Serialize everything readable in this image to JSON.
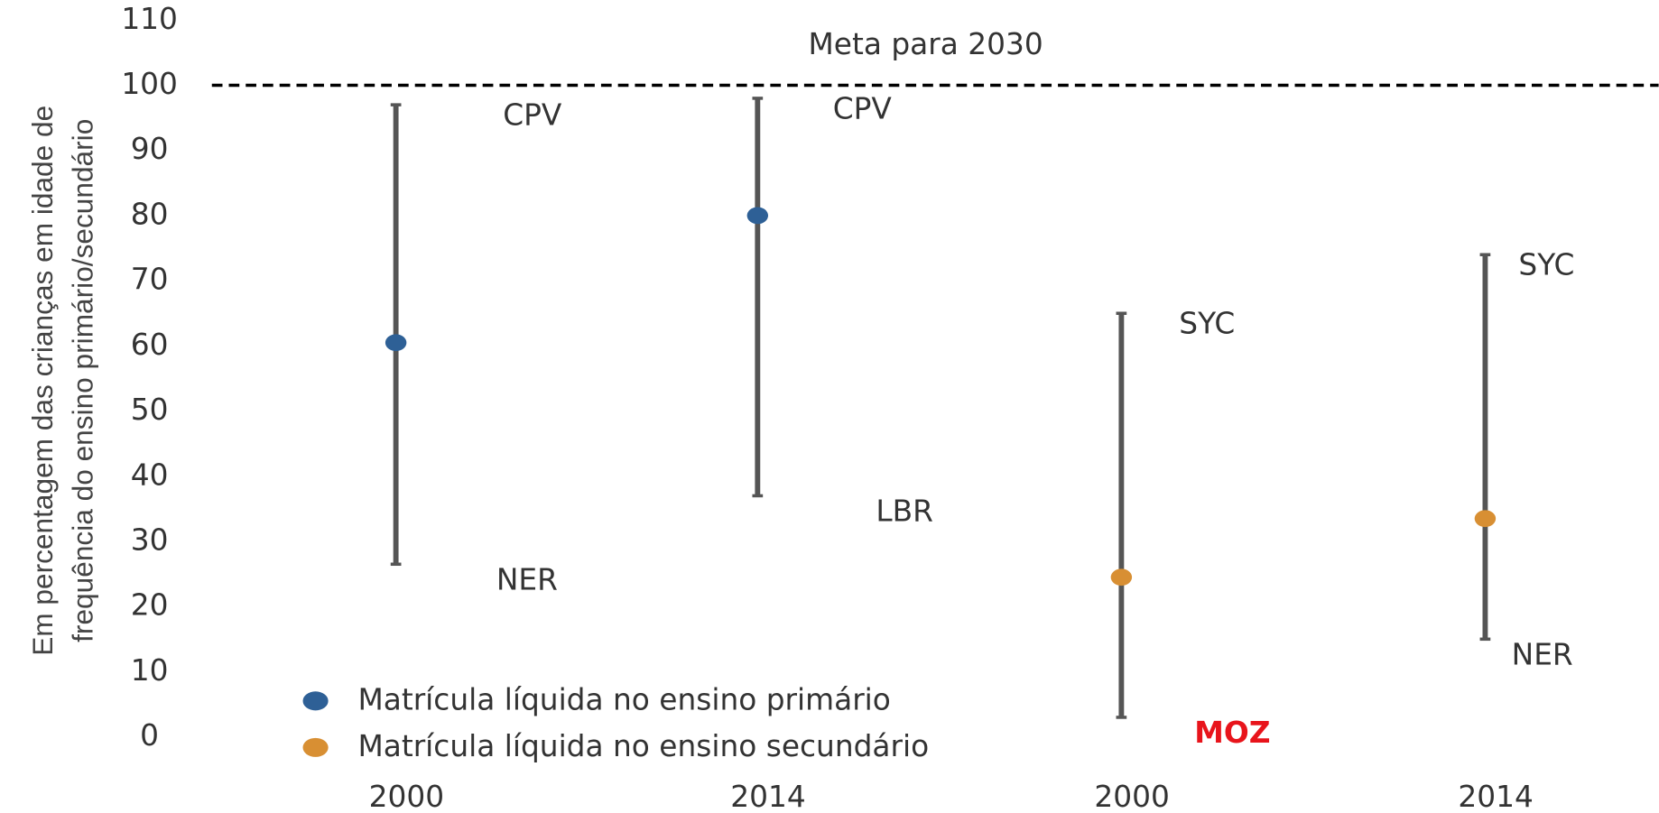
{
  "chart_data": {
    "type": "range",
    "ylabel": [
      "Em percentagem das crianças em idade de",
      "frequência do ensino primário/secundário"
    ],
    "categories": [
      "2000",
      "2014",
      "2000",
      "2014"
    ],
    "series": [
      {
        "name": "Matrícula líquida no ensino primário",
        "color": "#2e6096",
        "values": [
          60.5,
          80,
          null,
          null
        ]
      },
      {
        "name": "Matrícula líquida no ensino secundário",
        "color": "#d88f33",
        "values": [
          null,
          null,
          24.5,
          33.5
        ]
      }
    ],
    "ranges": {
      "low": [
        26.5,
        37,
        3,
        15
      ],
      "high": [
        97,
        98,
        65,
        74
      ],
      "color": "#555555"
    },
    "range_labels": {
      "high": [
        "CPV",
        "CPV",
        "SYC",
        "SYC"
      ],
      "low": [
        "NER",
        "LBR",
        "MOZ",
        "NER"
      ]
    },
    "target": {
      "value": 100,
      "label": "Meta para 2030"
    },
    "ylim": [
      0,
      110
    ],
    "yticks": [
      0,
      10,
      20,
      30,
      40,
      50,
      60,
      70,
      80,
      90,
      100,
      110
    ]
  }
}
